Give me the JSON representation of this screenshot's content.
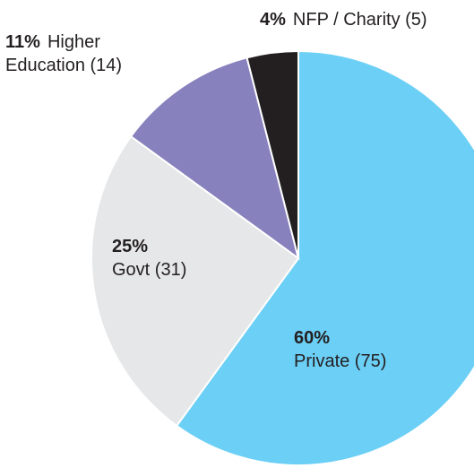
{
  "chart_data": {
    "type": "pie",
    "categories": [
      "Private (75)",
      "Govt (31)",
      "Higher Education (14)",
      "NFP / Charity (5)"
    ],
    "values": [
      60,
      25,
      11,
      4
    ],
    "value_labels": [
      "60%",
      "25%",
      "11%",
      "4%"
    ],
    "colors": [
      "#6ccff6",
      "#e6e7e8",
      "#8781bd",
      "#231f20"
    ]
  }
}
